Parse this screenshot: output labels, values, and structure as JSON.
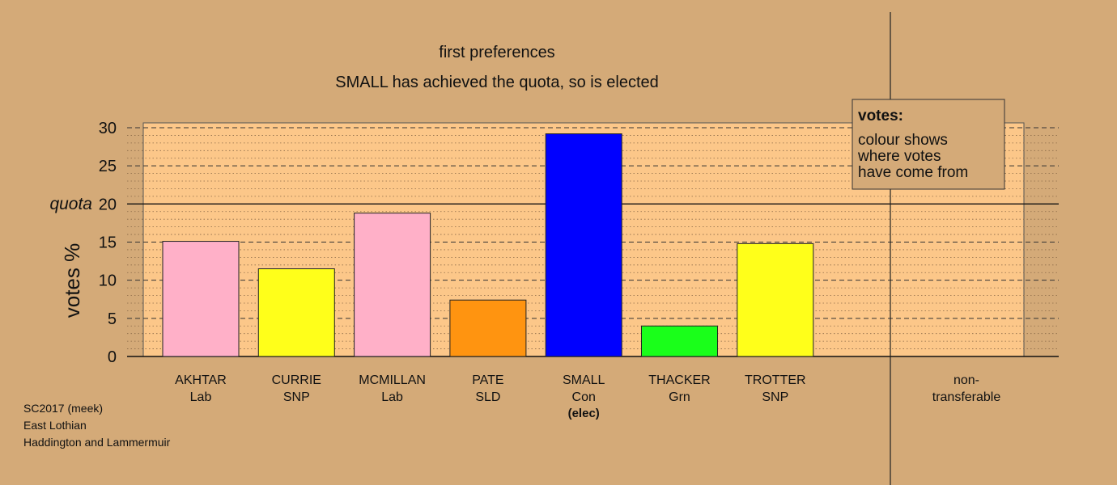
{
  "chart_data": {
    "type": "bar",
    "title": "first preferences",
    "subtitle": "SMALL has achieved the quota, so is elected",
    "ylabel": "votes %",
    "ylim": [
      0,
      30
    ],
    "yticks": [
      0,
      5,
      10,
      15,
      20,
      25,
      30
    ],
    "quota": {
      "label": "quota",
      "value": 20
    },
    "grid": true,
    "categories": [
      {
        "name": "AKHTAR",
        "party": "Lab",
        "note": "",
        "value": 15.1,
        "color": "#ffb0c8"
      },
      {
        "name": "CURRIE",
        "party": "SNP",
        "note": "",
        "value": 11.5,
        "color": "#ffff1a"
      },
      {
        "name": "MCMILLAN",
        "party": "Lab",
        "note": "",
        "value": 18.8,
        "color": "#ffb0c8"
      },
      {
        "name": "PATE",
        "party": "SLD",
        "note": "",
        "value": 7.4,
        "color": "#ff9410"
      },
      {
        "name": "SMALL",
        "party": "Con",
        "note": "(elec)",
        "value": 29.2,
        "color": "#0000ff"
      },
      {
        "name": "THACKER",
        "party": "Grn",
        "note": "",
        "value": 4.0,
        "color": "#1aff1a"
      },
      {
        "name": "TROTTER",
        "party": "SNP",
        "note": "",
        "value": 14.8,
        "color": "#ffff1a"
      }
    ],
    "non_transferable": {
      "line1": "non-",
      "line2": "transferable",
      "value": 0
    },
    "legend": {
      "title": "votes:",
      "lines": [
        "colour shows",
        "where votes",
        "have come from"
      ],
      "placement": "top-right"
    },
    "footer": [
      "SC2017 (meek)",
      "East Lothian",
      "Haddington and Lammermuir"
    ]
  },
  "colors": {
    "background": "#d4aa78",
    "plot_area": "#fcc789",
    "legend_bg": "#d4aa78"
  }
}
